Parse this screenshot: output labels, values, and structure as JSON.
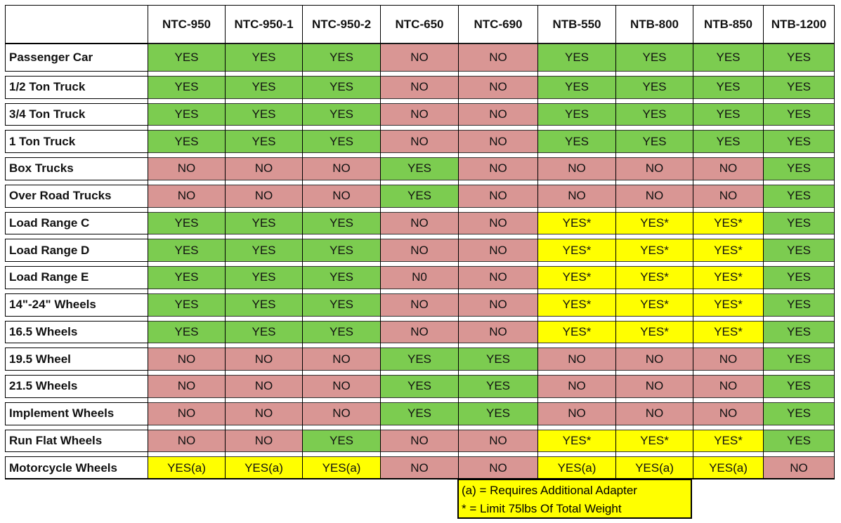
{
  "table": {
    "headers": [
      "NTC-950",
      "NTC-950-1",
      "NTC-950-2",
      "NTC-650",
      "NTC-690",
      "NTB-550",
      "NTB-800",
      "NTB-850",
      "NTB-1200"
    ],
    "rows": [
      {
        "label": "Passenger Car",
        "cells": [
          "YES",
          "YES",
          "YES",
          "NO",
          "NO",
          "YES",
          "YES",
          "YES",
          "YES"
        ]
      },
      {
        "label": "1/2 Ton Truck",
        "cells": [
          "YES",
          "YES",
          "YES",
          "NO",
          "NO",
          "YES",
          "YES",
          "YES",
          "YES"
        ]
      },
      {
        "label": "3/4 Ton Truck",
        "cells": [
          "YES",
          "YES",
          "YES",
          "NO",
          "NO",
          "YES",
          "YES",
          "YES",
          "YES"
        ]
      },
      {
        "label": "1 Ton Truck",
        "cells": [
          "YES",
          "YES",
          "YES",
          "NO",
          "NO",
          "YES",
          "YES",
          "YES",
          "YES"
        ]
      },
      {
        "label": "Box Trucks",
        "cells": [
          "NO",
          "NO",
          "NO",
          "YES",
          "NO",
          "NO",
          "NO",
          "NO",
          "YES"
        ]
      },
      {
        "label": "Over Road Trucks",
        "cells": [
          "NO",
          "NO",
          "NO",
          "YES",
          "NO",
          "NO",
          "NO",
          "NO",
          "YES"
        ]
      },
      {
        "label": "Load Range C",
        "cells": [
          "YES",
          "YES",
          "YES",
          "NO",
          "NO",
          "YES*",
          "YES*",
          "YES*",
          "YES"
        ]
      },
      {
        "label": "Load Range D",
        "cells": [
          "YES",
          "YES",
          "YES",
          "NO",
          "NO",
          "YES*",
          "YES*",
          "YES*",
          "YES"
        ]
      },
      {
        "label": "Load Range E",
        "cells": [
          "YES",
          "YES",
          "YES",
          "N0",
          "NO",
          "YES*",
          "YES*",
          "YES*",
          "YES"
        ]
      },
      {
        "label": "14\"-24\" Wheels",
        "cells": [
          "YES",
          "YES",
          "YES",
          "NO",
          "NO",
          "YES*",
          "YES*",
          "YES*",
          "YES"
        ]
      },
      {
        "label": "16.5 Wheels",
        "cells": [
          "YES",
          "YES",
          "YES",
          "NO",
          "NO",
          "YES*",
          "YES*",
          "YES*",
          "YES"
        ]
      },
      {
        "label": "19.5 Wheel",
        "cells": [
          "NO",
          "NO",
          "NO",
          "YES",
          "YES",
          "NO",
          "NO",
          "NO",
          "YES"
        ]
      },
      {
        "label": "21.5 Wheels",
        "cells": [
          "NO",
          "NO",
          "NO",
          "YES",
          "YES",
          "NO",
          "NO",
          "NO",
          "YES"
        ]
      },
      {
        "label": "Implement Wheels",
        "cells": [
          "NO",
          "NO",
          "NO",
          "YES",
          "YES",
          "NO",
          "NO",
          "NO",
          "YES"
        ]
      },
      {
        "label": "Run Flat Wheels",
        "cells": [
          "NO",
          "NO",
          "YES",
          "NO",
          "NO",
          "YES*",
          "YES*",
          "YES*",
          "YES"
        ]
      },
      {
        "label": "Motorcycle Wheels",
        "cells": [
          "YES(a)",
          "YES(a)",
          "YES(a)",
          "NO",
          "NO",
          "YES(a)",
          "YES(a)",
          "YES(a)",
          "NO"
        ]
      }
    ],
    "notes": [
      "(a) = Requires Additional Adapter",
      "* = Limit 75lbs Of Total Weight"
    ]
  }
}
